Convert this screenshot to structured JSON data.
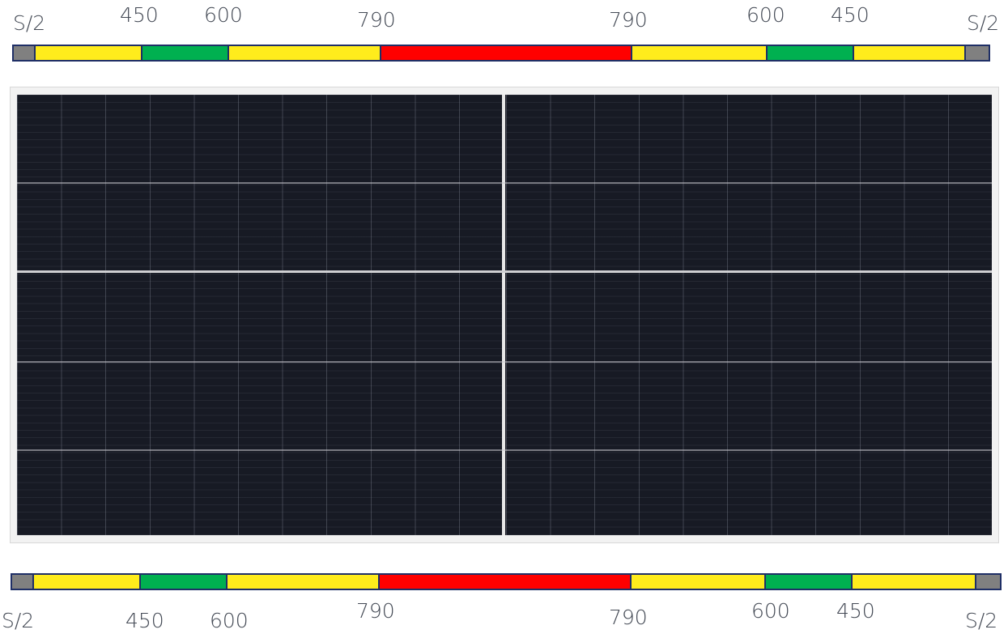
{
  "top_scale": {
    "labels": [
      "S/2",
      "450",
      "600",
      "790",
      "790",
      "600",
      "450",
      "S/2"
    ],
    "segments": [
      {
        "color": "#808080"
      },
      {
        "color": "#ffec1c"
      },
      {
        "color": "#00b050"
      },
      {
        "color": "#ffec1c"
      },
      {
        "color": "#ff0000"
      },
      {
        "color": "#ffec1c"
      },
      {
        "color": "#00b050"
      },
      {
        "color": "#ffec1c"
      },
      {
        "color": "#808080"
      }
    ]
  },
  "bottom_scale": {
    "labels": [
      "S/2",
      "450",
      "600",
      "790",
      "790",
      "600",
      "450",
      "S/2"
    ],
    "segments": [
      {
        "color": "#808080"
      },
      {
        "color": "#ffec1c"
      },
      {
        "color": "#00b050"
      },
      {
        "color": "#ffec1c"
      },
      {
        "color": "#ff0000"
      },
      {
        "color": "#ffec1c"
      },
      {
        "color": "#00b050"
      },
      {
        "color": "#ffec1c"
      },
      {
        "color": "#808080"
      }
    ]
  },
  "panel": {
    "frame_color": "#f2f2f2",
    "cell_color": "#171a24"
  }
}
